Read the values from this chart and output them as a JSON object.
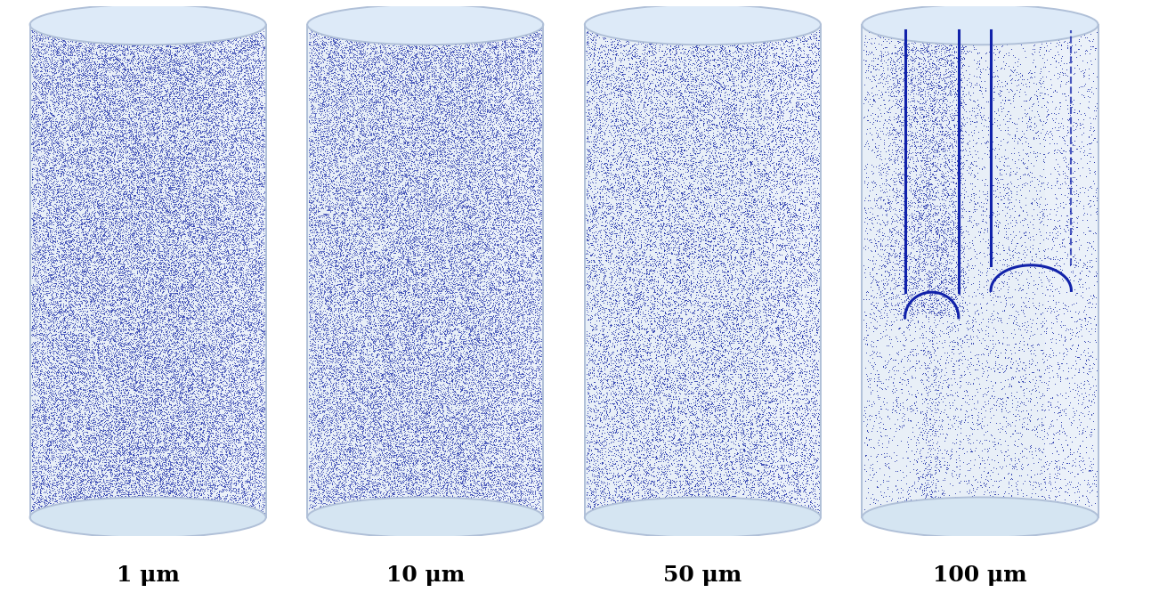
{
  "background_color": "#ffffff",
  "cylinder_fill_color": "#e8eff7",
  "cylinder_edge_color": "#b0c0d8",
  "cylinder_highlight_color": "#f0f5fc",
  "dot_color": "#2233aa",
  "vortex_color": "#1122aa",
  "labels": [
    "1 μm",
    "10 μm",
    "50 μm",
    "100 μm"
  ],
  "label_fontsize": 18,
  "vortex_linewidth": 2.2,
  "figure_width": 12.93,
  "figure_height": 6.84,
  "panel_configs": [
    {
      "n_dots": 55000,
      "dot_size": 0.35,
      "alpha": 0.85,
      "has_vortex": false
    },
    {
      "n_dots": 50000,
      "dot_size": 0.35,
      "alpha": 0.85,
      "has_vortex": false
    },
    {
      "n_dots": 28000,
      "dot_size": 0.45,
      "alpha": 0.85,
      "has_vortex": false
    },
    {
      "n_dots": 7000,
      "dot_size": 0.5,
      "alpha": 0.85,
      "has_vortex": true
    }
  ]
}
